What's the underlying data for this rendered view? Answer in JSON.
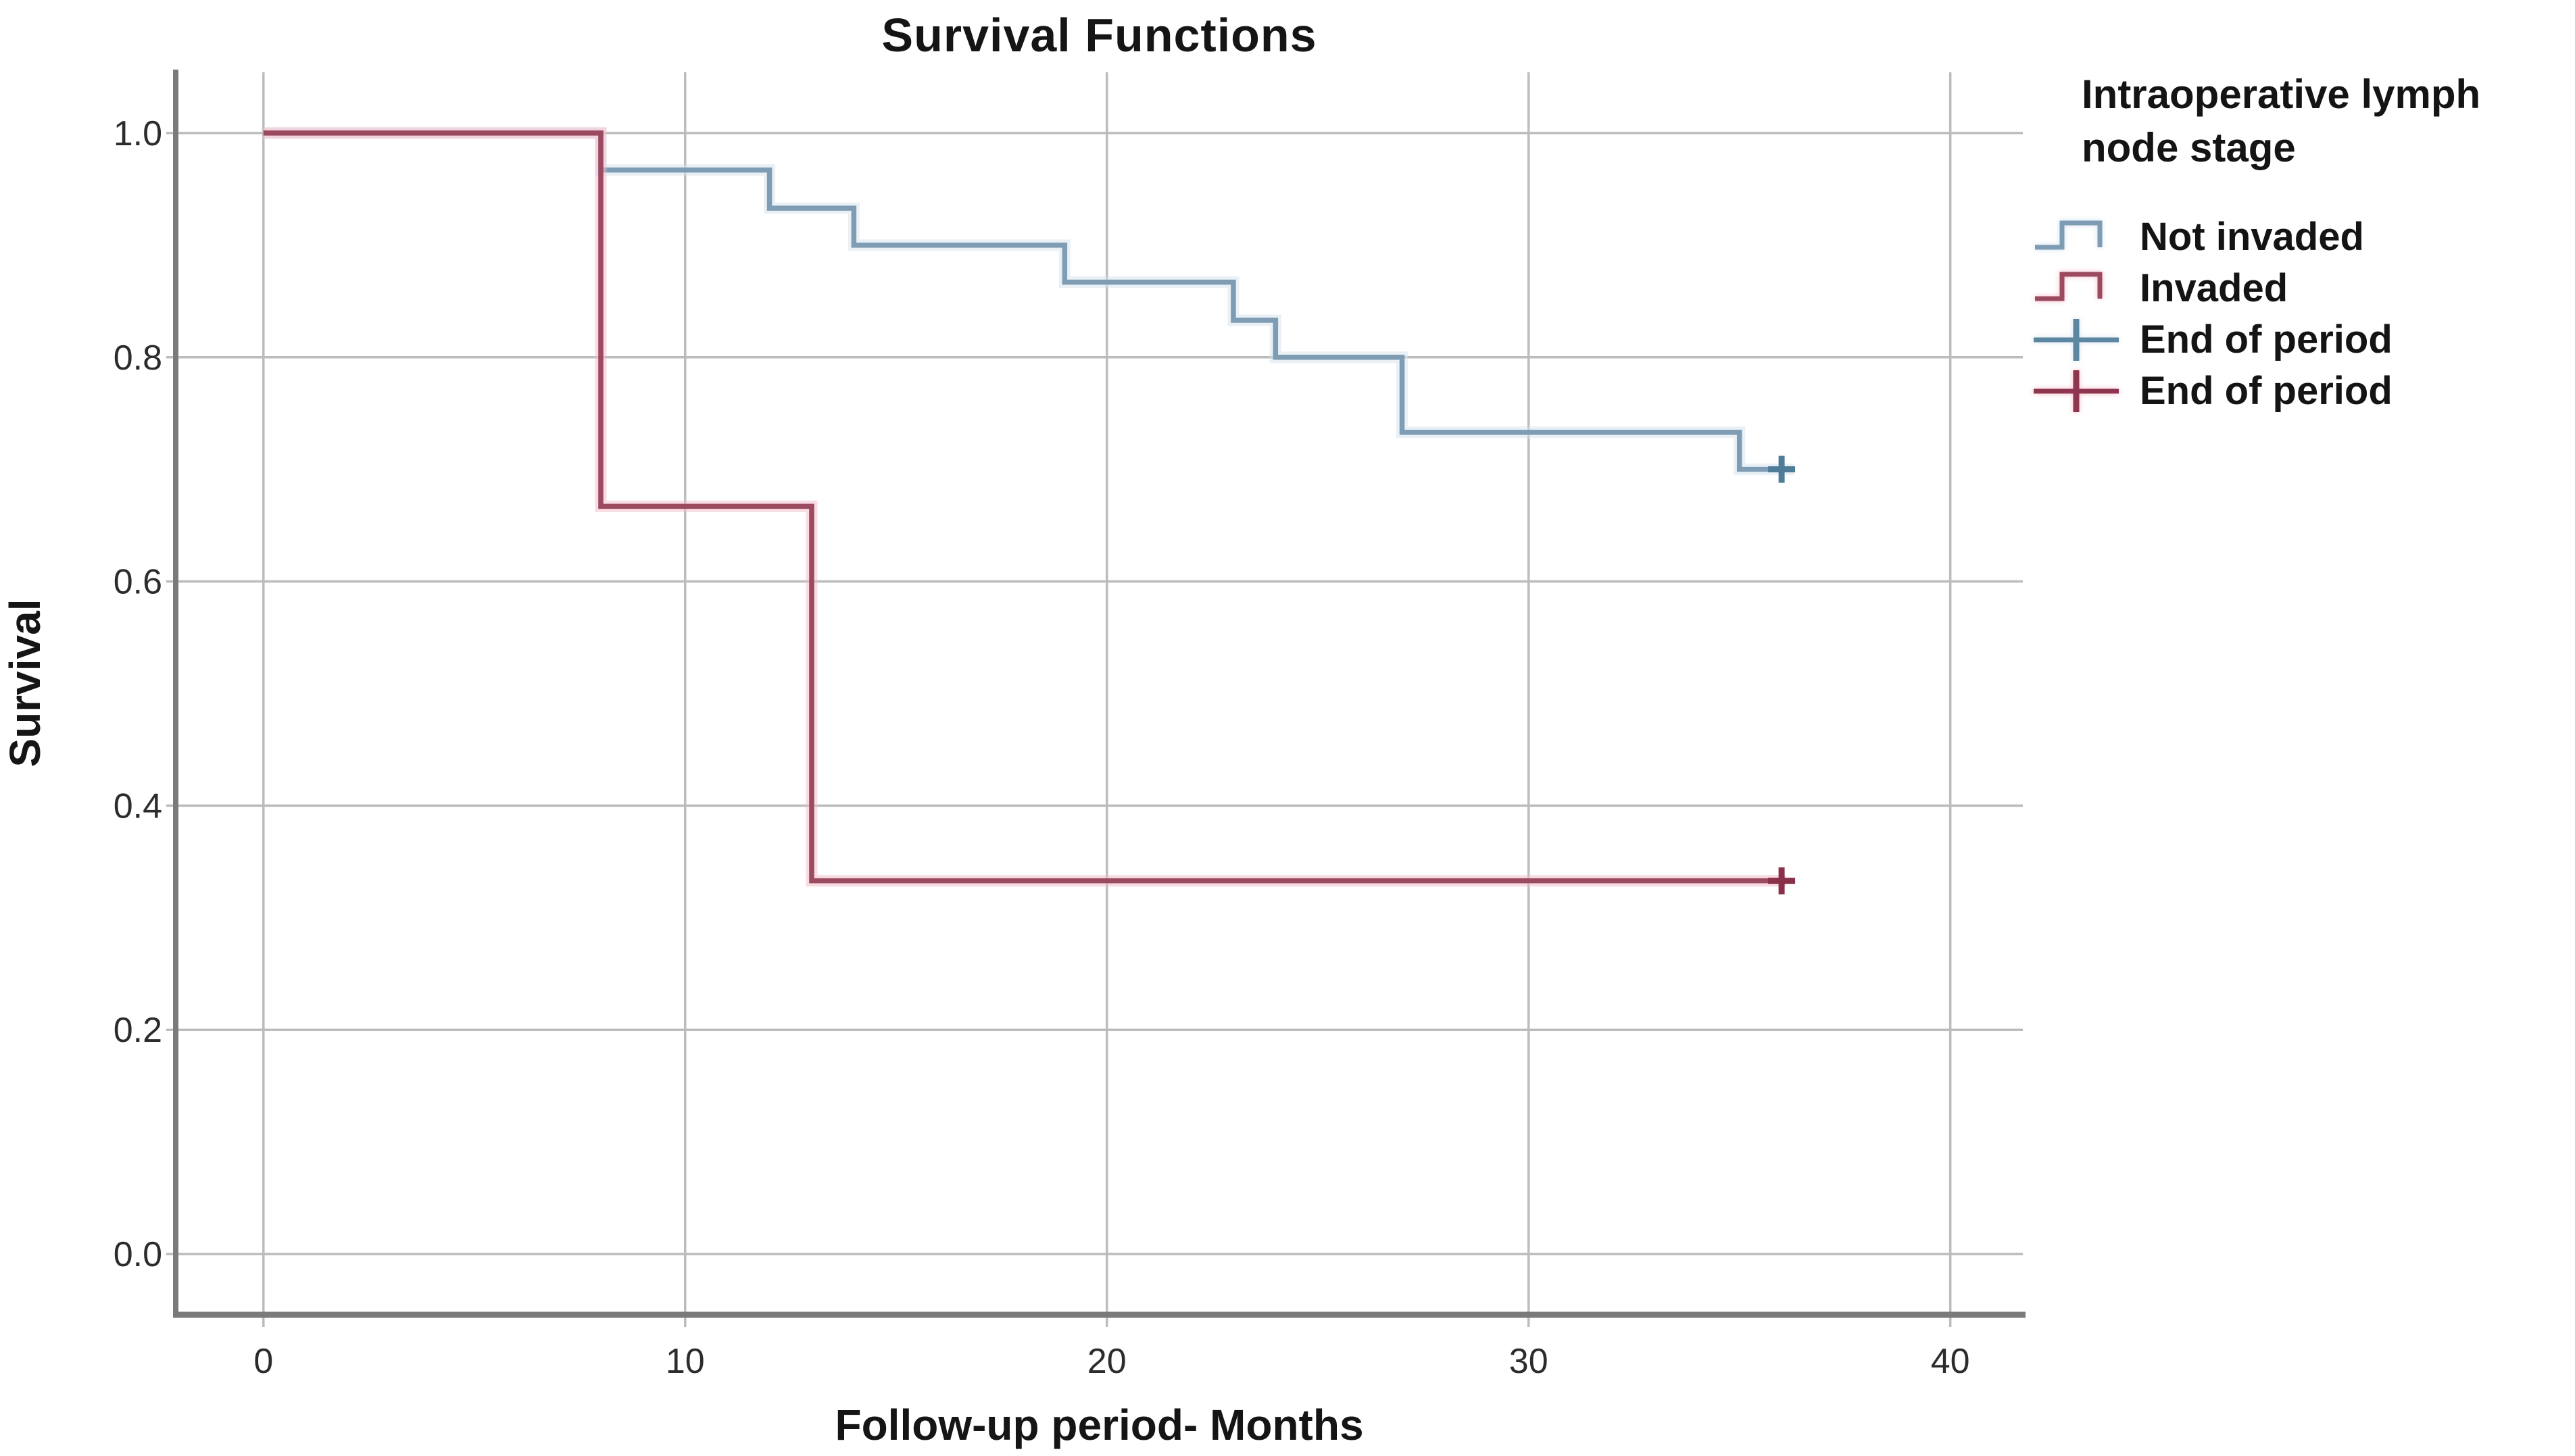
{
  "title": "Survival Functions",
  "axes": {
    "x_title": "Follow-up period- Months",
    "y_title": "Survival"
  },
  "legend": {
    "title_line1": "Intraoperative lymph",
    "title_line2": "node stage",
    "items": [
      {
        "label": "Not invaded",
        "symbol": "step",
        "color": "#7e9cb3",
        "glow": "#d3e2ee"
      },
      {
        "label": "Invaded",
        "symbol": "step",
        "color": "#9b4a60",
        "glow": "#f3bac8"
      },
      {
        "label": "End of period",
        "symbol": "plus",
        "color": "#5d87a1",
        "glow": "#d3e2ee"
      },
      {
        "label": "End of period",
        "symbol": "plus",
        "color": "#8e3550",
        "glow": "#f3bac8"
      }
    ]
  },
  "chart_data": {
    "type": "line",
    "subtype": "kaplan_meier_step",
    "title": "Survival Functions",
    "xlabel": "Follow-up period- Months",
    "ylabel": "Survival",
    "xlim": [
      -2.08,
      41.72
    ],
    "ylim": [
      -0.0542,
      1.0542
    ],
    "x_ticks": [
      0,
      10,
      20,
      30,
      40
    ],
    "y_ticks": [
      0.0,
      0.2,
      0.4,
      0.6,
      0.8,
      1.0
    ],
    "grid": true,
    "legend_position": "right",
    "series": [
      {
        "name": "Not invaded",
        "color": "#7e9cb3",
        "glow": "#d3e2ee",
        "marker_color": "#4f7d99",
        "steps": [
          [
            0,
            1.0
          ],
          [
            8,
            0.967
          ],
          [
            12,
            0.933
          ],
          [
            14,
            0.9
          ],
          [
            19,
            0.867
          ],
          [
            23,
            0.833
          ],
          [
            24,
            0.8
          ],
          [
            27,
            0.733
          ],
          [
            35,
            0.7
          ]
        ],
        "end_x": 36.3,
        "censored": [
          [
            36,
            0.7
          ]
        ]
      },
      {
        "name": "Invaded",
        "color": "#9b4a60",
        "glow": "#f3bac8",
        "marker_color": "#8a3049",
        "steps": [
          [
            0,
            1.0
          ],
          [
            8,
            0.667
          ],
          [
            13,
            0.333
          ]
        ],
        "end_x": 36.1,
        "censored": [
          [
            36,
            0.333
          ]
        ]
      }
    ]
  }
}
